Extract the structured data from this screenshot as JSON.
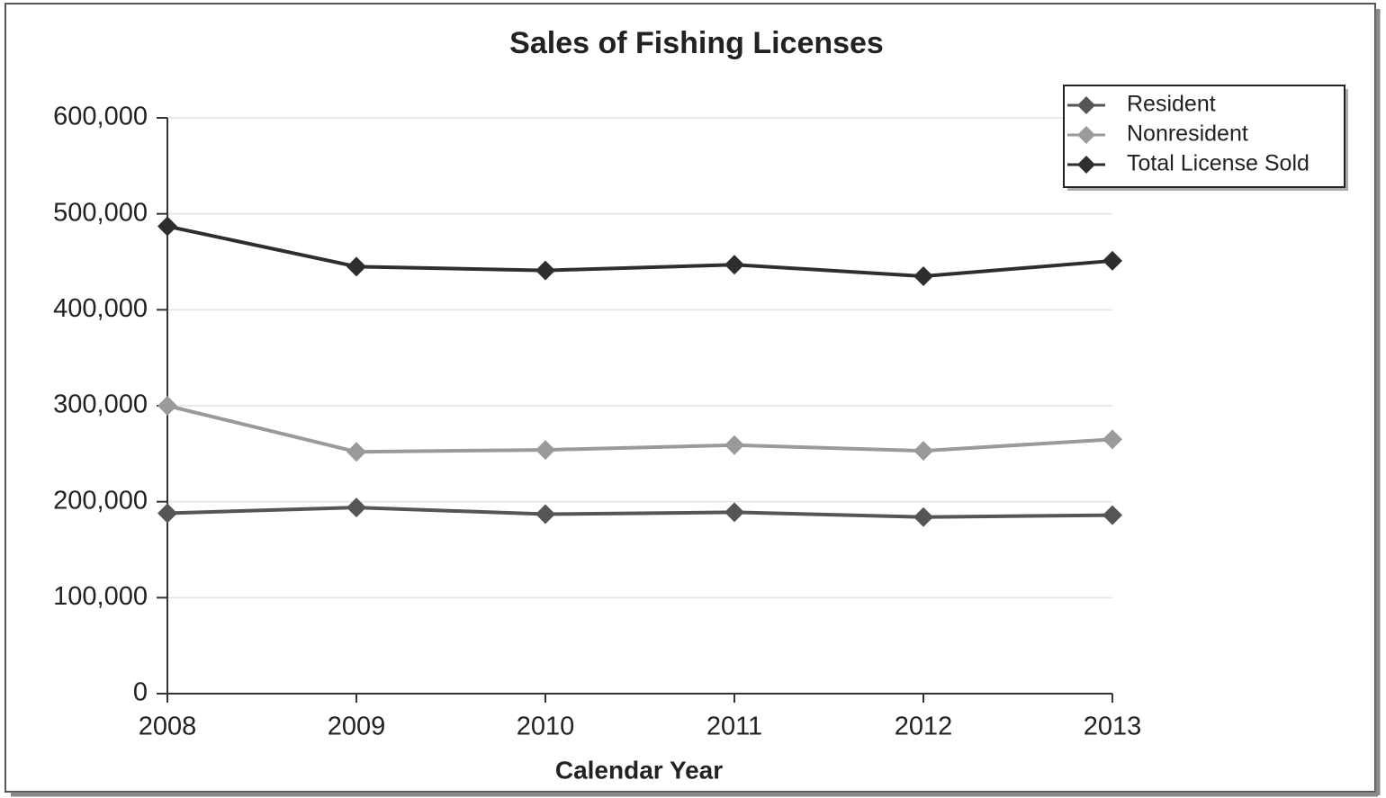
{
  "chart_data": {
    "type": "line",
    "title": "Sales of Fishing Licenses",
    "x_label": "Calendar Year",
    "categories": [
      "2008",
      "2009",
      "2010",
      "2011",
      "2012",
      "2013"
    ],
    "series": [
      {
        "name": "Resident",
        "color": "#555555",
        "values": [
          188000,
          194000,
          187000,
          189000,
          184000,
          186000
        ]
      },
      {
        "name": "Nonresident",
        "color": "#9a9a9a",
        "values": [
          300000,
          252000,
          254000,
          259000,
          253000,
          265000
        ]
      },
      {
        "name": "Total License Sold",
        "color": "#2e2e2e",
        "values": [
          487000,
          445000,
          441000,
          447000,
          435000,
          451000
        ]
      }
    ],
    "ylim": [
      0,
      600000
    ],
    "yticks": [
      0,
      {
        "value": 100000,
        "label": "100,000"
      },
      {
        "value": 200000,
        "label": "200,000"
      },
      {
        "value": 300000,
        "label": "300,000"
      },
      {
        "value": 400000,
        "label": "400,000"
      },
      {
        "value": 500000,
        "label": "500,000"
      },
      {
        "value": 600000,
        "label": "600,000"
      }
    ],
    "grid": true,
    "legend": "upper right"
  }
}
